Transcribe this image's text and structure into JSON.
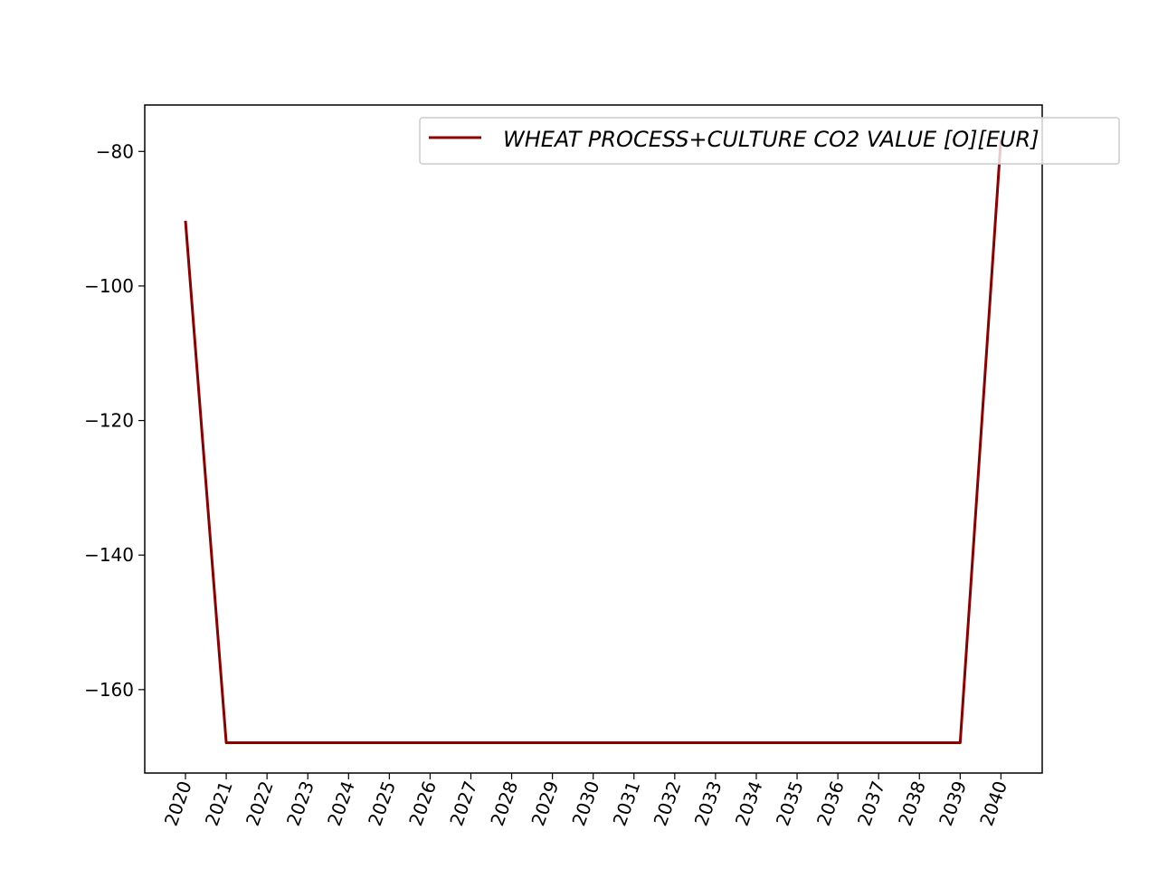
{
  "chart_data": {
    "type": "line",
    "title": "",
    "xlabel": "",
    "ylabel": "",
    "x": [
      "2020",
      "2021",
      "2022",
      "2023",
      "2024",
      "2025",
      "2026",
      "2027",
      "2028",
      "2029",
      "2030",
      "2031",
      "2032",
      "2033",
      "2034",
      "2035",
      "2036",
      "2037",
      "2038",
      "2039",
      "2040"
    ],
    "series": [
      {
        "name": "WHEAT PROCESS+CULTURE CO2 VALUE [O][EUR]",
        "color": "#8b0000",
        "values": [
          -90.3,
          -167.9,
          -167.9,
          -167.9,
          -167.9,
          -167.9,
          -167.9,
          -167.9,
          -167.9,
          -167.9,
          -167.9,
          -167.9,
          -167.9,
          -167.9,
          -167.9,
          -167.9,
          -167.9,
          -167.9,
          -167.9,
          -167.9,
          -78.1
        ]
      }
    ],
    "ylim": [
      -172.4,
      -73.1
    ],
    "yticks": [
      -80,
      -100,
      -120,
      -140,
      -160
    ],
    "ytick_labels": [
      "−80",
      "−100",
      "−120",
      "−140",
      "−160"
    ],
    "xtick_rotation": "70",
    "legend": "upper right",
    "grid": false
  }
}
